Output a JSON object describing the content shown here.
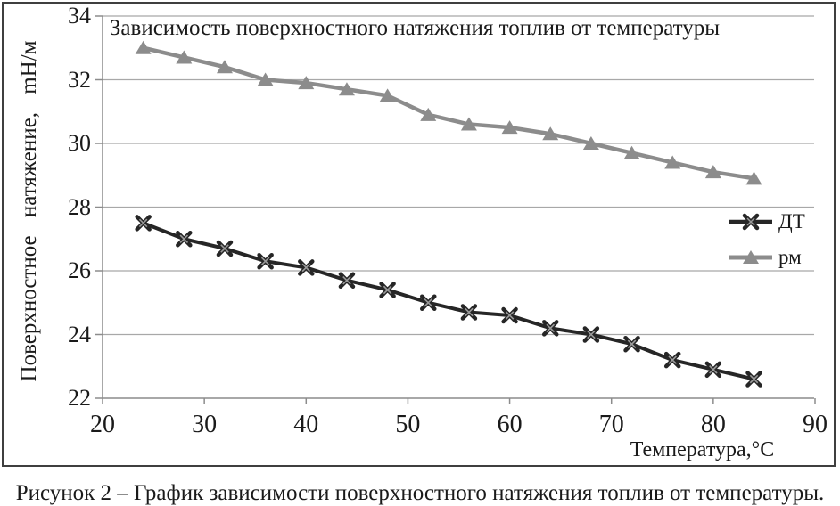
{
  "figure": {
    "caption": "Рисунок 2 – График зависимости поверхностного натяжения топлив от температуры."
  },
  "chart_data": {
    "type": "line",
    "title": "Зависимость поверхностного натяжения топлив от температуры",
    "xlabel": "Температура,°С",
    "ylabel": "Поверхностное натяжение, mН/м",
    "x": [
      24,
      28,
      32,
      36,
      40,
      44,
      48,
      52,
      56,
      60,
      64,
      68,
      72,
      76,
      80,
      84
    ],
    "series": [
      {
        "name": "ДТ",
        "marker": "x",
        "color": "#262626",
        "values": [
          27.5,
          27.0,
          26.7,
          26.3,
          26.1,
          25.7,
          25.4,
          25.0,
          24.7,
          24.6,
          24.2,
          24.0,
          23.7,
          23.2,
          22.9,
          22.6
        ]
      },
      {
        "name": "рм",
        "marker": "triangle",
        "color": "#8c8c8c",
        "values": [
          33.0,
          32.7,
          32.4,
          32.0,
          31.9,
          31.7,
          31.5,
          30.9,
          30.6,
          30.5,
          30.3,
          30.0,
          29.7,
          29.4,
          29.1,
          28.9
        ]
      }
    ],
    "xlim": [
      20,
      90
    ],
    "ylim": [
      22,
      34
    ],
    "x_ticks": [
      20,
      30,
      40,
      50,
      60,
      70,
      80,
      90
    ],
    "y_ticks": [
      22,
      24,
      26,
      28,
      30,
      32,
      34
    ],
    "grid": true,
    "legend_position": "right-middle",
    "colors": {
      "gridline": "#a8a8a8",
      "axis": "#8c8c8c",
      "frame": "#3f3f3f",
      "series_dt": "#262626",
      "series_rm": "#8c8c8c"
    }
  }
}
